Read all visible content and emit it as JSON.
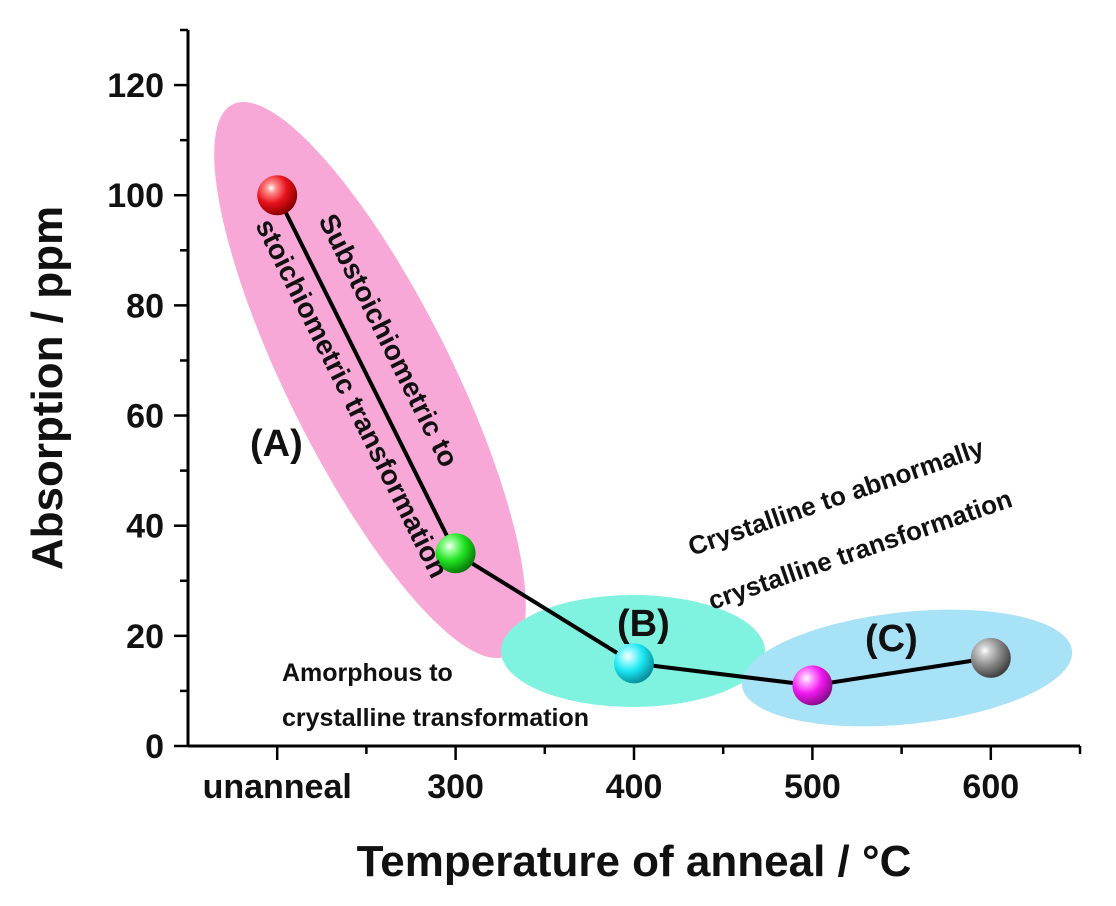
{
  "chart_data": {
    "type": "line",
    "xlabel": "Temperature of anneal / °C",
    "ylabel": "Absorption / ppm",
    "xlim": [
      150,
      650
    ],
    "ylim": [
      0,
      130
    ],
    "x_ticks": [
      {
        "value": 200,
        "label": "unanneal"
      },
      {
        "value": 300,
        "label": "300"
      },
      {
        "value": 400,
        "label": "400"
      },
      {
        "value": 500,
        "label": "500"
      },
      {
        "value": 600,
        "label": "600"
      }
    ],
    "y_ticks": [
      0,
      20,
      40,
      60,
      80,
      100,
      120
    ],
    "series": [
      {
        "name": "Absorption",
        "x": [
          200,
          300,
          400,
          500,
          600
        ],
        "labels": [
          "unanneal",
          "300",
          "400",
          "500",
          "600"
        ],
        "values": [
          100,
          35,
          15,
          11,
          16
        ],
        "marker_colors": [
          "#e8121b",
          "#1ee01e",
          "#19e6f2",
          "#f019f0",
          "#8a8a8a"
        ]
      }
    ],
    "regions": [
      {
        "id": "A",
        "label": "(A)",
        "color": "#f7a8d6",
        "text_lines": [
          "Substoichiometric to",
          "stoichiometric transformation"
        ]
      },
      {
        "id": "B",
        "label": "(B)",
        "color": "#7ff3df",
        "text_lines": [
          "Amorphous to",
          "crystalline transformation"
        ]
      },
      {
        "id": "C",
        "label": "(C)",
        "color": "#a8e2f7",
        "text_lines": [
          "Crystalline to  abnormally",
          "crystalline transformation"
        ]
      }
    ]
  }
}
